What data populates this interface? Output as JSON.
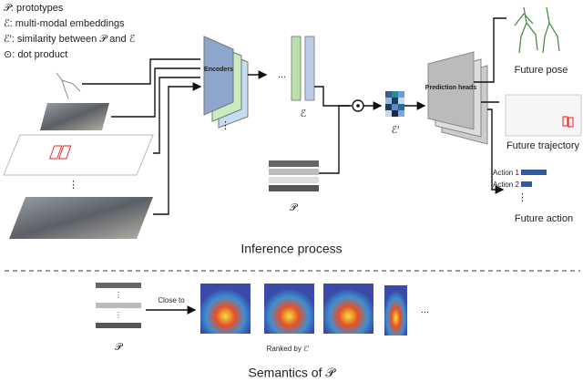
{
  "legend": [
    "𝒫: prototypes",
    "ℰ: multi-modal embeddings",
    "ℰ′: similarity between 𝒫 and ℰ",
    "⊙: dot product"
  ],
  "inference": {
    "encoders": "Encoders",
    "embeddings": "ℰ",
    "similarity": "ℰ′",
    "prototypes": "𝒫",
    "heads": "Prediction heads",
    "outputs": {
      "pose": "Future pose",
      "trajectory": "Future trajectory",
      "action": "Future action",
      "actions": [
        "Action 1",
        "Action 2"
      ]
    },
    "caption": "Inference process"
  },
  "semantics": {
    "prototypes": "𝒫",
    "close_to": "Close to",
    "ranked": "Ranked by ℰ′",
    "caption": "Semantics of 𝒫"
  }
}
